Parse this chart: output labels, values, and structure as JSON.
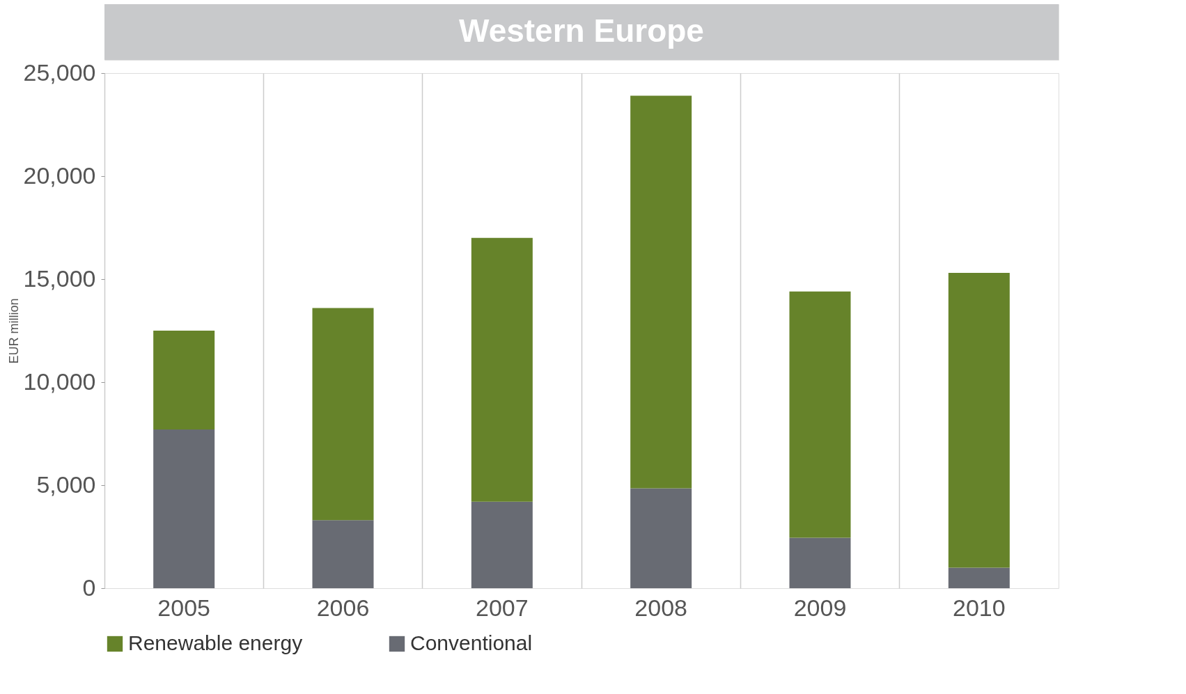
{
  "chart_data": {
    "type": "bar",
    "title": "Western Europe",
    "ylabel": "EUR million",
    "categories": [
      "2005",
      "2006",
      "2007",
      "2008",
      "2009",
      "2010"
    ],
    "stacked": true,
    "series": [
      {
        "name": "Conventional",
        "color": "#686b73",
        "values": [
          7700,
          3300,
          4200,
          4850,
          2450,
          1000
        ]
      },
      {
        "name": "Renewable energy",
        "color": "#66832a",
        "values": [
          4800,
          10300,
          12800,
          19050,
          11950,
          14300
        ]
      }
    ],
    "ylim": [
      0,
      25000
    ],
    "yticks": [
      {
        "value": 0,
        "label": "0"
      },
      {
        "value": 5000,
        "label": "5,000"
      },
      {
        "value": 10000,
        "label": "10,000"
      },
      {
        "value": 15000,
        "label": "15,000"
      },
      {
        "value": 20000,
        "label": "20,000"
      },
      {
        "value": 25000,
        "label": "25,000"
      }
    ],
    "grid": "x",
    "legend": "bottom"
  }
}
